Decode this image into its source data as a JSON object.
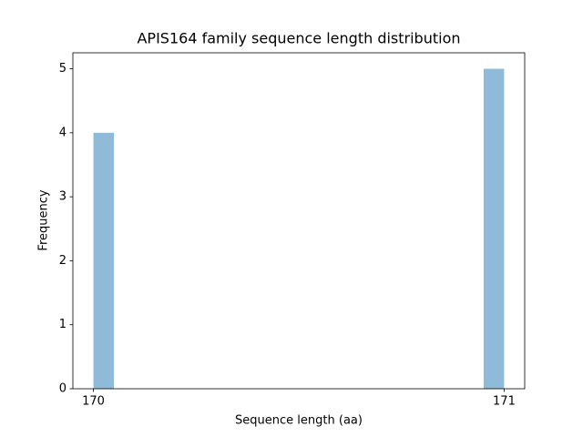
{
  "chart_data": {
    "type": "histogram",
    "title": "APIS164 family sequence length distribution",
    "x_label": "Sequence length (aa)",
    "y_label": "Frequency",
    "bins": [
      170,
      170.05,
      170.1,
      170.15,
      170.2,
      170.25,
      170.3,
      170.35,
      170.4,
      170.45,
      170.5,
      170.55,
      170.6,
      170.65,
      170.7,
      170.75,
      170.8,
      170.85,
      170.9,
      170.95,
      171
    ],
    "values": [
      4,
      0,
      0,
      0,
      0,
      0,
      0,
      0,
      0,
      0,
      0,
      0,
      0,
      0,
      0,
      0,
      0,
      0,
      0,
      5
    ],
    "color": "#8fbbd9",
    "xlim": [
      169.95,
      171.05
    ],
    "xticks": [
      170,
      171
    ],
    "ylim": [
      0,
      5.25
    ],
    "yticks": [
      0,
      1,
      2,
      3,
      4,
      5
    ]
  }
}
